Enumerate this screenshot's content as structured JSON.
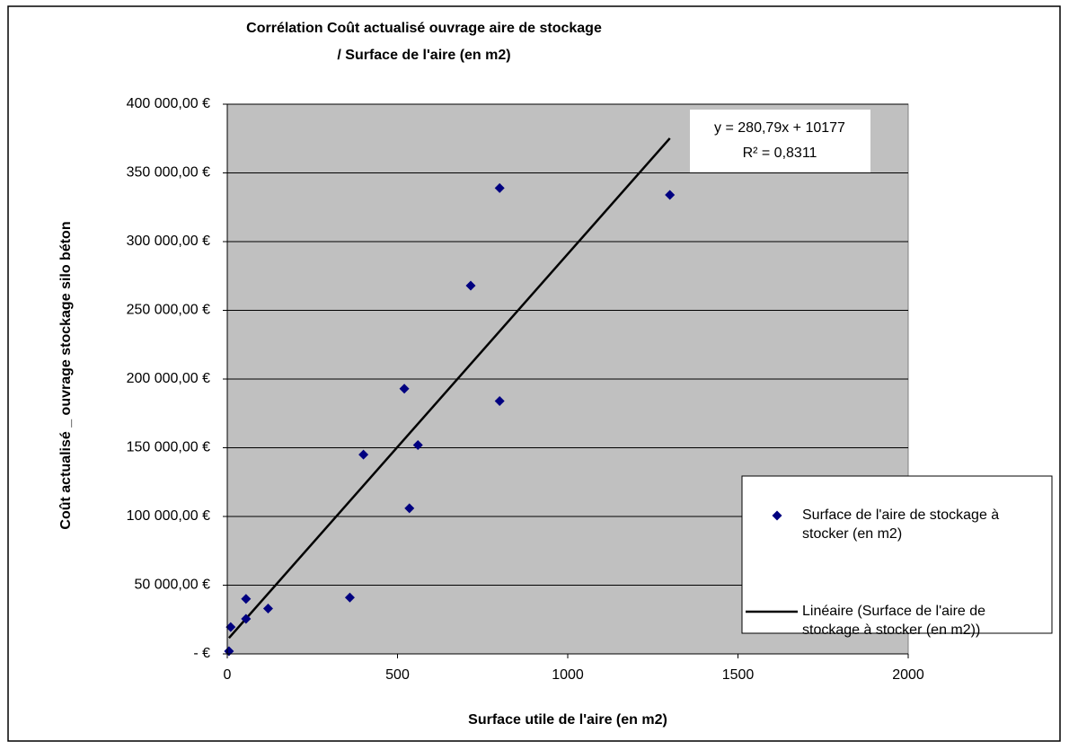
{
  "chart_data": {
    "type": "scatter",
    "title": [
      "Corrélation  Coût actualisé ouvrage aire de stockage",
      "/ Surface de l'aire (en m2)"
    ],
    "xlabel": "Surface utile de l'aire (en m2)",
    "ylabel": "Coût actualisé _ ouvrage stockage silo béton",
    "series": [
      {
        "name": "Surface de l'aire de stockage à stocker (en m2)",
        "color": "#000080",
        "x": [
          800,
          1300,
          715,
          520,
          800,
          560,
          400,
          535,
          360,
          120,
          55,
          55,
          10,
          5
        ],
        "values": [
          339000,
          334000,
          268000,
          193000,
          184000,
          152000,
          145000,
          106000,
          41000,
          33000,
          40000,
          25500,
          19500,
          2000
        ]
      }
    ],
    "trendline": {
      "name": "Linéaire (Surface de l'aire de stockage à stocker (en m2))",
      "equation": "y = 280,79x + 10177",
      "r_squared_label": "R² = 0,8311",
      "slope": 280.79,
      "intercept": 10177,
      "color": "#000000"
    },
    "xlim": [
      0,
      2000
    ],
    "xticks": [
      0,
      500,
      1000,
      1500,
      2000
    ],
    "ylim": [
      0,
      400000
    ],
    "yticks": [
      {
        "value": 0,
        "label": "-   €"
      },
      {
        "value": 50000,
        "label": "50 000,00 €"
      },
      {
        "value": 100000,
        "label": "100 000,00 €"
      },
      {
        "value": 150000,
        "label": "150 000,00 €"
      },
      {
        "value": 200000,
        "label": "200 000,00 €"
      },
      {
        "value": 250000,
        "label": "250 000,00 €"
      },
      {
        "value": 300000,
        "label": "300 000,00 €"
      },
      {
        "value": 350000,
        "label": "350 000,00 €"
      },
      {
        "value": 400000,
        "label": "400 000,00 €"
      }
    ],
    "grid": true,
    "plot_background": "#c0c0c0",
    "legend": "right"
  }
}
